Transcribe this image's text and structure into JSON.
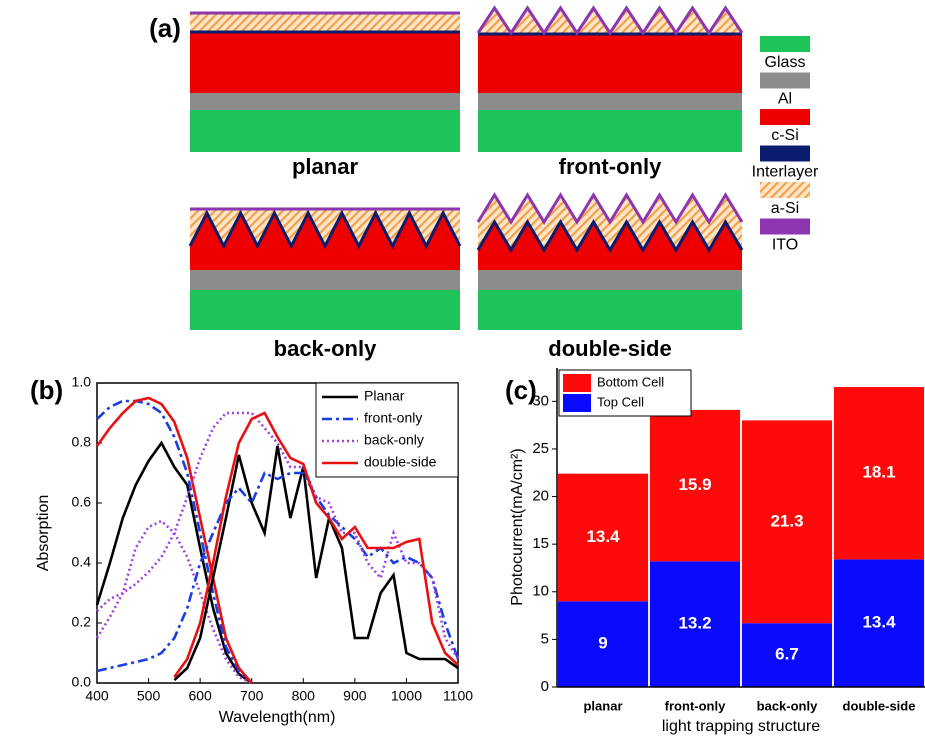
{
  "panel_a": {
    "label": "(a)",
    "structures": [
      "planar",
      "front-only",
      "back-only",
      "double-side"
    ],
    "legend": [
      {
        "name": "Glass",
        "color": "#1ec45a"
      },
      {
        "name": "Al",
        "color": "#8c8c8c"
      },
      {
        "name": "c-Si",
        "color": "#ee0000"
      },
      {
        "name": "Interlayer",
        "color": "#0b1c6e"
      },
      {
        "name": "a-Si",
        "color": "#f2a04c"
      },
      {
        "name": "ITO",
        "color": "#8e35b0"
      }
    ]
  },
  "chart_data": [
    {
      "type": "line",
      "panel_label": "(b)",
      "xlabel": "Wavelength(nm)",
      "ylabel": "Absorption",
      "x": [
        400,
        425,
        450,
        475,
        500,
        525,
        550,
        575,
        600,
        625,
        650,
        675,
        700,
        725,
        750,
        775,
        800,
        825,
        850,
        875,
        900,
        925,
        950,
        975,
        1000,
        1025,
        1050,
        1075,
        1100
      ],
      "xlim": [
        400,
        1100
      ],
      "xticks": [
        400,
        500,
        600,
        700,
        800,
        900,
        1000,
        1100
      ],
      "ylim": [
        0,
        1
      ],
      "yticks": [
        {
          "value": 0,
          "label": "0.0"
        },
        0.2,
        0.4,
        0.6,
        0.8,
        {
          "value": 1,
          "label": "1.0"
        }
      ],
      "legend": "upper right",
      "series": [
        {
          "name": "Planar",
          "color": "#000000",
          "style": "solid",
          "values": [
            0.26,
            0.4,
            0.55,
            0.66,
            0.74,
            0.8,
            0.72,
            0.66,
            0.45,
            0.25,
            0.1,
            0.03,
            0.0,
            null,
            null,
            null,
            null,
            null,
            null,
            null,
            null,
            null,
            null,
            null,
            null,
            null,
            null,
            null,
            null
          ]
        },
        {
          "name": "front-only",
          "color": "#1a3fe0",
          "style": "dashdot",
          "values": [
            0.88,
            0.92,
            0.94,
            0.94,
            0.93,
            0.9,
            0.82,
            0.7,
            0.5,
            0.3,
            0.12,
            0.04,
            0.0,
            null,
            null,
            null,
            null,
            null,
            null,
            null,
            null,
            null,
            null,
            null,
            null,
            null,
            null,
            null,
            null
          ]
        },
        {
          "name": "back-only",
          "color": "#a040e0",
          "style": "dot",
          "values": [
            0.15,
            0.22,
            0.3,
            0.45,
            0.52,
            0.54,
            0.5,
            0.42,
            0.3,
            0.18,
            0.08,
            0.02,
            0.0,
            null,
            null,
            null,
            null,
            null,
            null,
            null,
            null,
            null,
            null,
            null,
            null,
            null,
            null,
            null,
            null
          ]
        },
        {
          "name": "double-side",
          "color": "#e81010",
          "style": "solid",
          "values": [
            0.79,
            0.85,
            0.9,
            0.94,
            0.95,
            0.93,
            0.87,
            0.75,
            0.55,
            0.35,
            0.15,
            0.05,
            0.0,
            null,
            null,
            null,
            null,
            null,
            null,
            null,
            null,
            null,
            null,
            null,
            null,
            null,
            null,
            null,
            null
          ]
        },
        {
          "color": "#000000",
          "style": "solid",
          "values": [
            null,
            null,
            null,
            null,
            null,
            null,
            0.01,
            0.05,
            0.15,
            0.35,
            0.55,
            0.76,
            0.6,
            0.5,
            0.79,
            0.55,
            0.72,
            0.35,
            0.55,
            0.45,
            0.15,
            0.15,
            0.3,
            0.36,
            0.1,
            0.08,
            0.08,
            0.08,
            0.05
          ]
        },
        {
          "color": "#1a3fe0",
          "style": "dashdot",
          "values": [
            0.04,
            0.05,
            0.06,
            0.07,
            0.08,
            0.1,
            0.15,
            0.25,
            0.4,
            0.5,
            0.6,
            0.65,
            0.6,
            0.7,
            0.68,
            0.7,
            0.7,
            0.62,
            0.56,
            0.52,
            0.48,
            0.42,
            0.45,
            0.4,
            0.42,
            0.4,
            0.35,
            0.2,
            0.08
          ]
        },
        {
          "color": "#a040e0",
          "style": "dot",
          "values": [
            0.24,
            0.28,
            0.3,
            0.33,
            0.37,
            0.42,
            0.5,
            0.62,
            0.75,
            0.85,
            0.9,
            0.9,
            0.9,
            0.85,
            0.8,
            0.72,
            0.72,
            0.62,
            0.6,
            0.5,
            0.5,
            0.4,
            0.35,
            0.5,
            0.4,
            0.4,
            0.35,
            0.15,
            0.08
          ]
        },
        {
          "color": "#e81010",
          "style": "solid",
          "values": [
            null,
            null,
            null,
            null,
            null,
            null,
            0.02,
            0.08,
            0.2,
            0.4,
            0.62,
            0.8,
            0.88,
            0.9,
            0.82,
            0.75,
            0.73,
            0.6,
            0.55,
            0.48,
            0.52,
            0.45,
            0.45,
            0.45,
            0.47,
            0.48,
            0.2,
            0.1,
            0.06
          ]
        }
      ]
    },
    {
      "type": "stacked_bar",
      "panel_label": "(c)",
      "xlabel": "light trapping structure",
      "ylabel": "Photocurrent(mA/cm²)",
      "categories": [
        "planar",
        "front-only",
        "back-only",
        "double-side"
      ],
      "ylim": [
        0,
        33.5
      ],
      "yticks": [
        0,
        5,
        10,
        15,
        20,
        25,
        30
      ],
      "legend": "upper left",
      "series": [
        {
          "name": "Top Cell",
          "color": "#0a0aff",
          "values": [
            9,
            13.2,
            6.7,
            13.4
          ]
        },
        {
          "name": "Bottom Cell",
          "color": "#ff0a0a",
          "values": [
            13.4,
            15.9,
            21.3,
            18.1
          ]
        }
      ]
    }
  ]
}
